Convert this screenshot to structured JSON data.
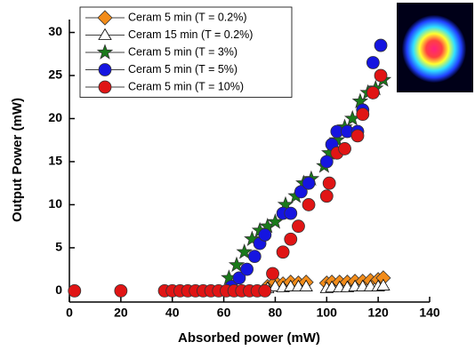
{
  "chart_data": {
    "type": "scatter",
    "x_label": "Absorbed power (mW)",
    "y_label": "Output Power (mW)",
    "xlim": [
      0,
      140
    ],
    "xticks": [
      0,
      20,
      40,
      60,
      80,
      100,
      120,
      140
    ],
    "ylim": [
      -1.3,
      31.5
    ],
    "yticks": [
      0,
      5,
      10,
      15,
      20,
      25,
      30
    ],
    "legend": "top-left",
    "series": [
      {
        "name": "Ceram 5 min (T = 0.2%)",
        "color": "#f28c1a",
        "marker": "diamond",
        "x": [
          77,
          80,
          83,
          86,
          89,
          92,
          100,
          102,
          105,
          108,
          111,
          114,
          117,
          120,
          122
        ],
        "values": [
          0.5,
          1,
          0.8,
          1,
          0.9,
          1,
          0.9,
          1,
          1,
          1,
          1.1,
          1.1,
          1.2,
          1.3,
          1.5
        ]
      },
      {
        "name": "Ceram 15 min (T = 0.2%)",
        "color": "#ffffff",
        "marker": "triangle",
        "x": [
          77,
          80,
          83,
          86,
          89,
          92,
          100,
          102,
          105,
          108,
          111,
          114,
          117,
          120,
          122
        ],
        "values": [
          0.3,
          0.5,
          0.4,
          0.5,
          0.5,
          0.5,
          0.3,
          0.4,
          0.4,
          0.4,
          0.5,
          0.5,
          0.5,
          0.5,
          0.6
        ]
      },
      {
        "name": "Ceram 5 min (T = 3%)",
        "color": "#1a7a1a",
        "marker": "star",
        "x": [
          62,
          65,
          68,
          71,
          74,
          77,
          80,
          84,
          88,
          91,
          94,
          99,
          101,
          104,
          107,
          110,
          113,
          116,
          119,
          122
        ],
        "values": [
          1.5,
          3,
          4.5,
          6,
          7,
          7.5,
          8,
          10,
          11,
          12.5,
          13,
          14.5,
          16,
          17.5,
          19,
          20,
          22,
          23,
          23.5,
          24.5
        ]
      },
      {
        "name": "Ceram 5 min (T = 5%)",
        "color": "#1515e0",
        "marker": "circle",
        "x": [
          63,
          66,
          69,
          72,
          74,
          76,
          83,
          86,
          90,
          93,
          100,
          102,
          104,
          108,
          112,
          114,
          118,
          121
        ],
        "values": [
          0.5,
          1.5,
          2.5,
          4,
          5.5,
          6.5,
          9,
          9,
          11.5,
          12.5,
          15,
          17,
          18.5,
          18.5,
          18.5,
          21,
          26.5,
          28.5
        ]
      },
      {
        "name": "Ceram 5 min (T = 10%)",
        "color": "#e01515",
        "marker": "circle",
        "x": [
          2,
          20,
          37,
          40,
          43,
          46,
          49,
          52,
          55,
          58,
          61,
          64,
          67,
          70,
          73,
          76,
          79,
          83,
          86,
          89,
          93,
          100,
          101,
          104,
          107,
          112,
          114,
          118,
          121
        ],
        "values": [
          0,
          0,
          0,
          0,
          0,
          0,
          0,
          0,
          0,
          0,
          0,
          0,
          0,
          0,
          0,
          0,
          2,
          4.5,
          6,
          7.5,
          10,
          11,
          12.5,
          16,
          16.5,
          18,
          20.5,
          23,
          25
        ]
      }
    ]
  }
}
